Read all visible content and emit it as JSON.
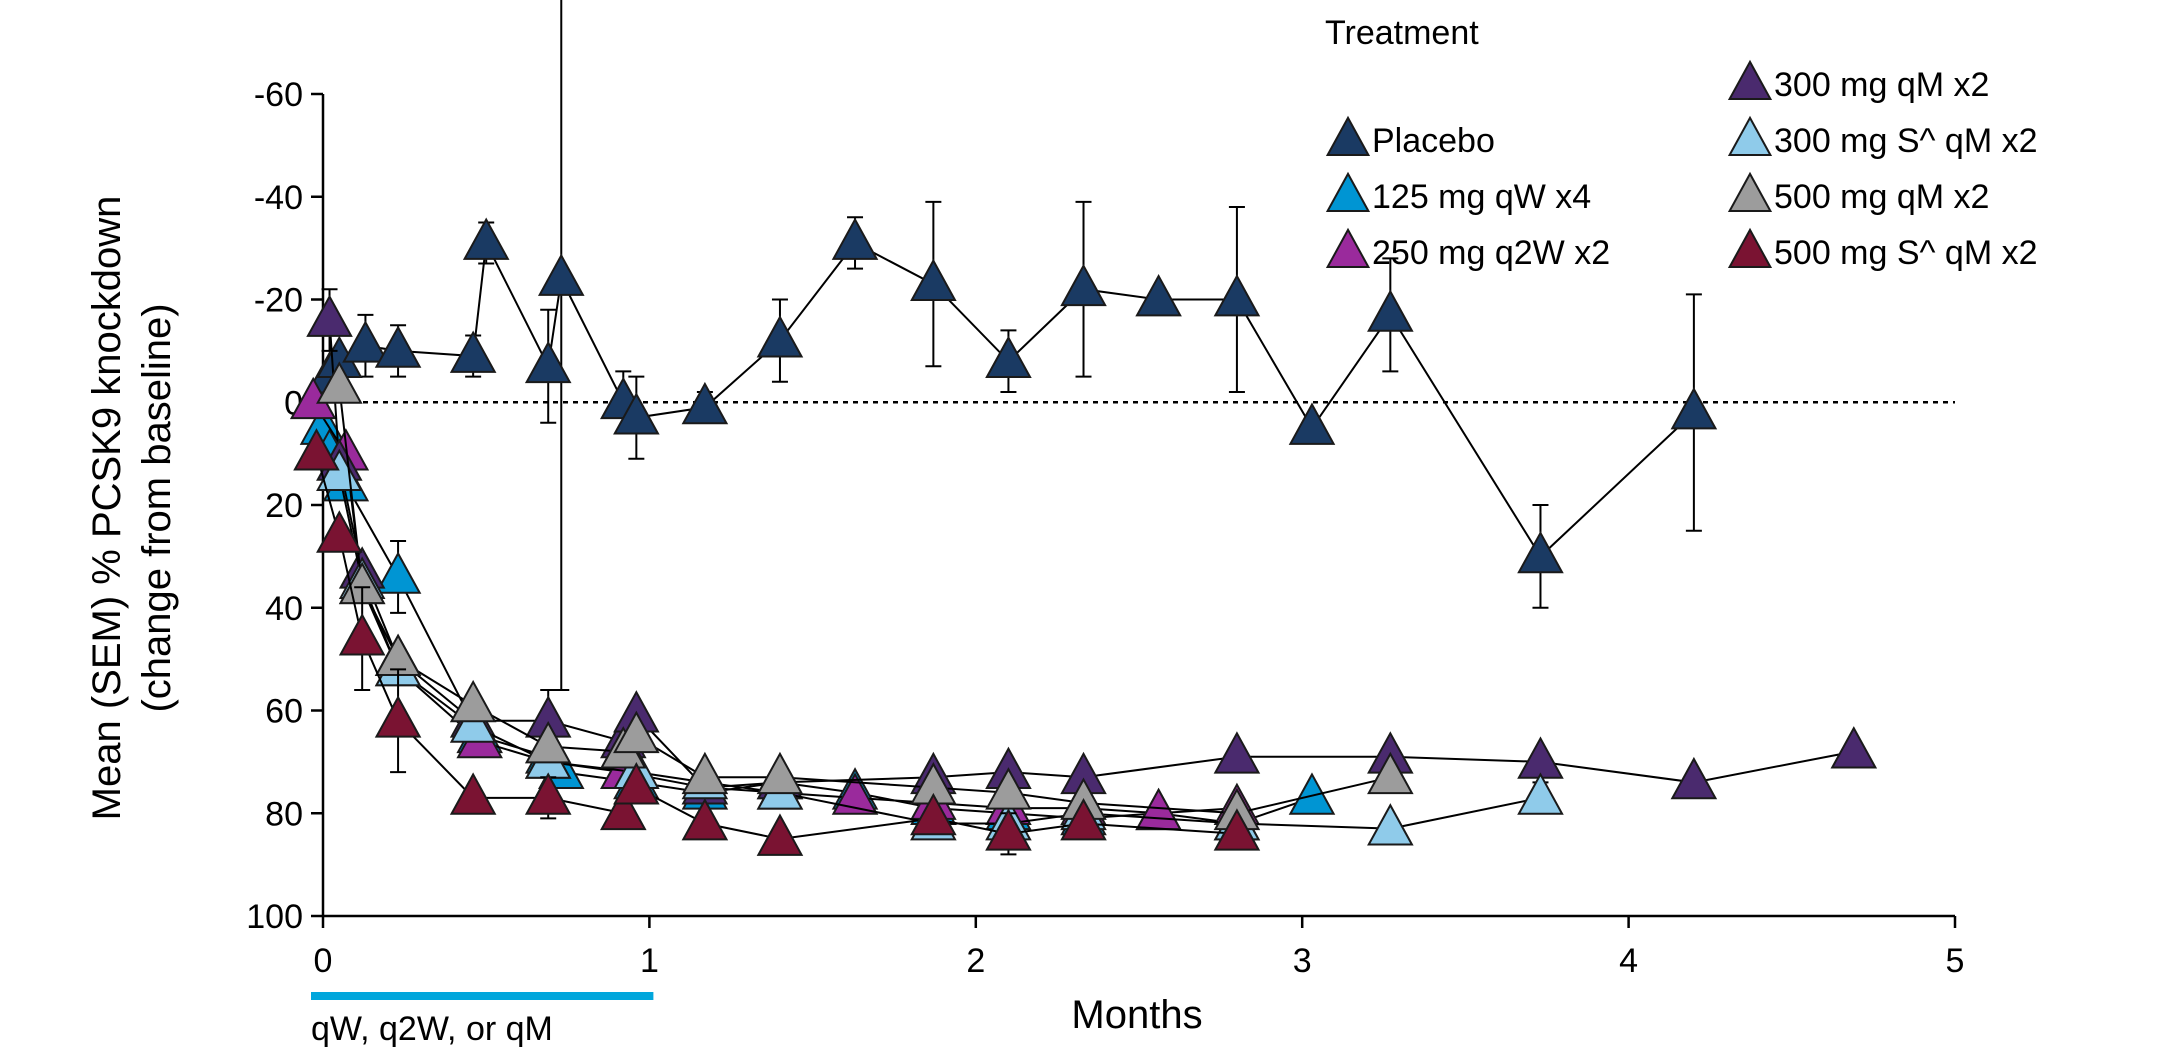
{
  "chart_data": {
    "type": "line",
    "xlabel": "Months",
    "ylabel": "Mean (SEM) % PCSK9 knockdown",
    "ylabel2": "(change from baseline)",
    "xlim": [
      0,
      5
    ],
    "ylim": [
      -60,
      100
    ],
    "y_inverted": true,
    "x_ticks": [
      "0",
      "1",
      "2",
      "3",
      "4",
      "5"
    ],
    "y_ticks": [
      "-60",
      "-40",
      "-20",
      "0",
      "20",
      "40",
      "60",
      "80",
      "100"
    ],
    "reference_line": 0,
    "dosing_bar": {
      "x": [
        0,
        1
      ],
      "label": "qW, q2W, or qM",
      "color": "#00a6dc"
    },
    "legend_title": "Treatment",
    "series": [
      {
        "name": "Placebo",
        "color": "#1a3a63",
        "points": [
          [
            0.02,
            -5,
            0
          ],
          [
            0.05,
            -8,
            0
          ],
          [
            0.13,
            -11,
            6
          ],
          [
            0.23,
            -10,
            5
          ],
          [
            0.46,
            -9,
            4
          ],
          [
            0.5,
            -31,
            4
          ],
          [
            0.69,
            -7,
            11
          ],
          [
            0.73,
            -24,
            80
          ],
          [
            0.92,
            0,
            6
          ],
          [
            0.96,
            3,
            8
          ],
          [
            1.17,
            1,
            3
          ],
          [
            1.4,
            -12,
            8
          ],
          [
            1.63,
            -31,
            5
          ],
          [
            1.87,
            -23,
            16
          ],
          [
            2.1,
            -8,
            6
          ],
          [
            2.33,
            -22,
            17
          ],
          [
            2.56,
            -20,
            0
          ],
          [
            2.8,
            -20,
            18
          ],
          [
            3.03,
            5,
            0
          ],
          [
            3.27,
            -17,
            11
          ],
          [
            3.73,
            30,
            10
          ],
          [
            4.2,
            2,
            23
          ]
        ]
      },
      {
        "name": "125 mg qW x4",
        "color": "#0095d3",
        "points": [
          [
            0,
            5,
            0
          ],
          [
            0.02,
            10,
            0
          ],
          [
            0.07,
            16,
            0
          ],
          [
            0.23,
            34,
            7
          ],
          [
            0.48,
            65,
            0
          ],
          [
            0.69,
            69,
            0
          ],
          [
            0.73,
            72,
            0
          ],
          [
            0.96,
            74,
            0
          ],
          [
            1.17,
            76,
            0
          ],
          [
            1.4,
            74,
            0
          ],
          [
            1.63,
            76,
            0
          ],
          [
            1.87,
            79,
            0
          ],
          [
            2.1,
            80,
            0
          ],
          [
            2.33,
            81,
            0
          ],
          [
            2.56,
            80,
            0
          ],
          [
            2.8,
            82,
            0
          ],
          [
            3.03,
            77,
            0
          ]
        ]
      },
      {
        "name": "250 mg q2W x2",
        "color": "#9a2a9c",
        "points": [
          [
            -0.03,
            0,
            0
          ],
          [
            0.07,
            10,
            0
          ],
          [
            0.12,
            36,
            0
          ],
          [
            0.23,
            52,
            0
          ],
          [
            0.48,
            66,
            0
          ],
          [
            0.69,
            70,
            0
          ],
          [
            0.92,
            72,
            0
          ],
          [
            1.17,
            75,
            0
          ],
          [
            1.4,
            76,
            0
          ],
          [
            1.63,
            77,
            0
          ],
          [
            1.87,
            78,
            0
          ],
          [
            2.1,
            79,
            0
          ],
          [
            2.33,
            79,
            0
          ],
          [
            2.56,
            80,
            0
          ],
          [
            2.8,
            79,
            0
          ]
        ]
      },
      {
        "name": "300 mg qM x2",
        "color": "#4a2a6e",
        "points": [
          [
            0.02,
            -16,
            6
          ],
          [
            0.05,
            12,
            0
          ],
          [
            0.12,
            33,
            0
          ],
          [
            0.23,
            50,
            0
          ],
          [
            0.46,
            62,
            0
          ],
          [
            0.69,
            62,
            6
          ],
          [
            0.92,
            66,
            0
          ],
          [
            0.96,
            61,
            0
          ],
          [
            1.17,
            75,
            0
          ],
          [
            1.4,
            74,
            0
          ],
          [
            1.87,
            73,
            0
          ],
          [
            2.1,
            72,
            0
          ],
          [
            2.33,
            73,
            0
          ],
          [
            2.8,
            69,
            0
          ],
          [
            3.27,
            69,
            0
          ],
          [
            3.73,
            70,
            0
          ],
          [
            4.2,
            74,
            0
          ],
          [
            4.69,
            68,
            0
          ]
        ]
      },
      {
        "name": "300 mg S^ qM x2",
        "color": "#8fcbea",
        "points": [
          [
            0.05,
            14,
            0
          ],
          [
            0.12,
            35,
            0
          ],
          [
            0.23,
            52,
            0
          ],
          [
            0.46,
            63,
            0
          ],
          [
            0.69,
            70,
            0
          ],
          [
            0.96,
            72,
            0
          ],
          [
            1.17,
            74,
            0
          ],
          [
            1.4,
            76,
            0
          ],
          [
            1.87,
            82,
            0
          ],
          [
            2.1,
            82,
            0
          ],
          [
            2.33,
            80,
            0
          ],
          [
            2.8,
            82,
            0
          ],
          [
            3.27,
            83,
            0
          ],
          [
            3.73,
            77,
            3
          ]
        ]
      },
      {
        "name": "500 mg qM x2",
        "color": "#9c9c9c",
        "points": [
          [
            0.05,
            -3,
            0
          ],
          [
            0.12,
            36,
            0
          ],
          [
            0.23,
            50,
            0
          ],
          [
            0.46,
            59,
            0
          ],
          [
            0.69,
            67,
            0
          ],
          [
            0.92,
            68,
            0
          ],
          [
            0.96,
            65,
            0
          ],
          [
            1.17,
            73,
            0
          ],
          [
            1.4,
            73,
            0
          ],
          [
            1.87,
            75,
            0
          ],
          [
            2.1,
            76,
            0
          ],
          [
            2.33,
            78,
            0
          ],
          [
            2.8,
            80,
            0
          ],
          [
            3.27,
            73,
            0
          ]
        ]
      },
      {
        "name": "500 mg S^ qM x2",
        "color": "#7a1332",
        "points": [
          [
            -0.02,
            10,
            0
          ],
          [
            0.05,
            26,
            0
          ],
          [
            0.12,
            46,
            10
          ],
          [
            0.23,
            62,
            10
          ],
          [
            0.46,
            77,
            0
          ],
          [
            0.69,
            77,
            4
          ],
          [
            0.92,
            80,
            0
          ],
          [
            0.96,
            75,
            0
          ],
          [
            1.17,
            82,
            0
          ],
          [
            1.4,
            85,
            0
          ],
          [
            1.87,
            81,
            0
          ],
          [
            2.1,
            84,
            4
          ],
          [
            2.33,
            82,
            0
          ],
          [
            2.8,
            84,
            0
          ]
        ]
      }
    ]
  }
}
